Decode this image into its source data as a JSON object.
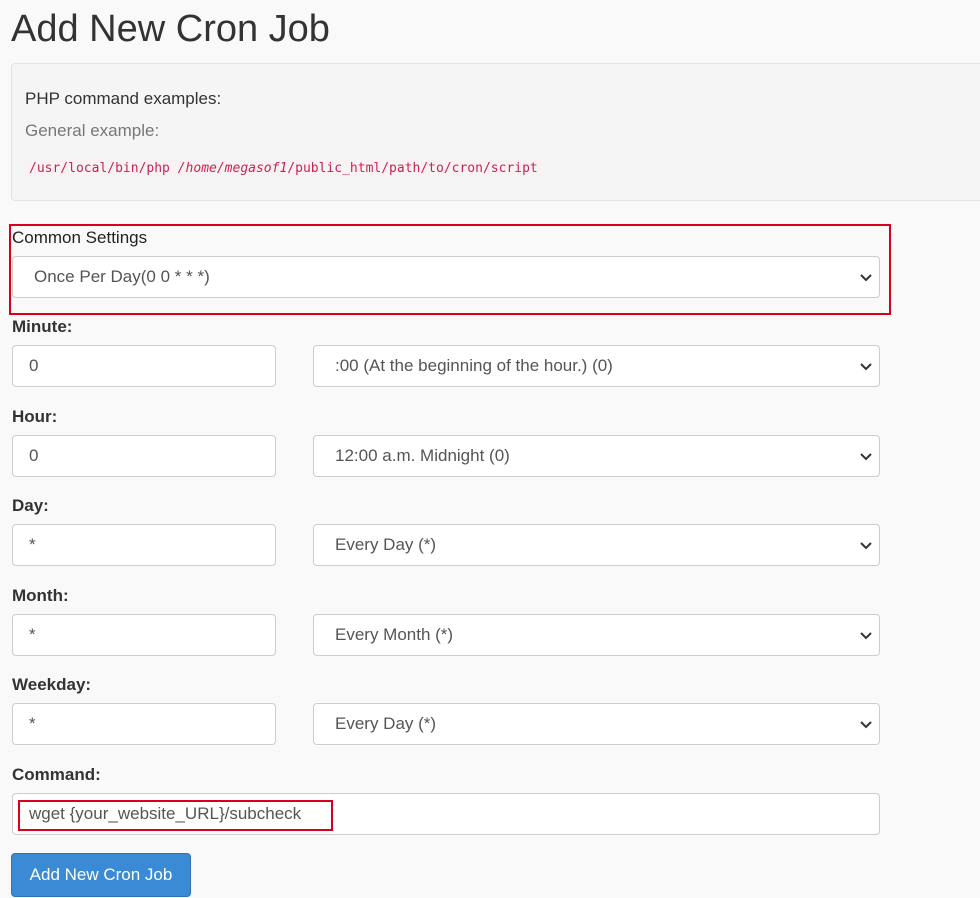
{
  "title": "Add New Cron Job",
  "examples": {
    "heading": "PHP command examples:",
    "subheading": "General example:",
    "code_prefix": "/usr/local/bin/php ",
    "code_italic": "/home/megasof1",
    "code_suffix": "/public_html/path/to/cron/script"
  },
  "common": {
    "label": "Common Settings",
    "value": "Once Per Day(0 0 * * *)"
  },
  "rows": [
    {
      "label": "Minute:",
      "input": "0",
      "select": ":00 (At the beginning of the hour.) (0)"
    },
    {
      "label": "Hour:",
      "input": "0",
      "select": "12:00 a.m. Midnight (0)"
    },
    {
      "label": "Day:",
      "input": "*",
      "select": "Every Day (*)"
    },
    {
      "label": "Month:",
      "input": "*",
      "select": "Every Month (*)"
    },
    {
      "label": "Weekday:",
      "input": "*",
      "select": "Every Day (*)"
    }
  ],
  "command": {
    "label": "Command:",
    "value": "wget {your_website_URL}/subcheck"
  },
  "submit_label": "Add New Cron Job",
  "colors": {
    "highlight": "#d9001b",
    "button": "#3a8ad6",
    "code": "#c7254e"
  }
}
